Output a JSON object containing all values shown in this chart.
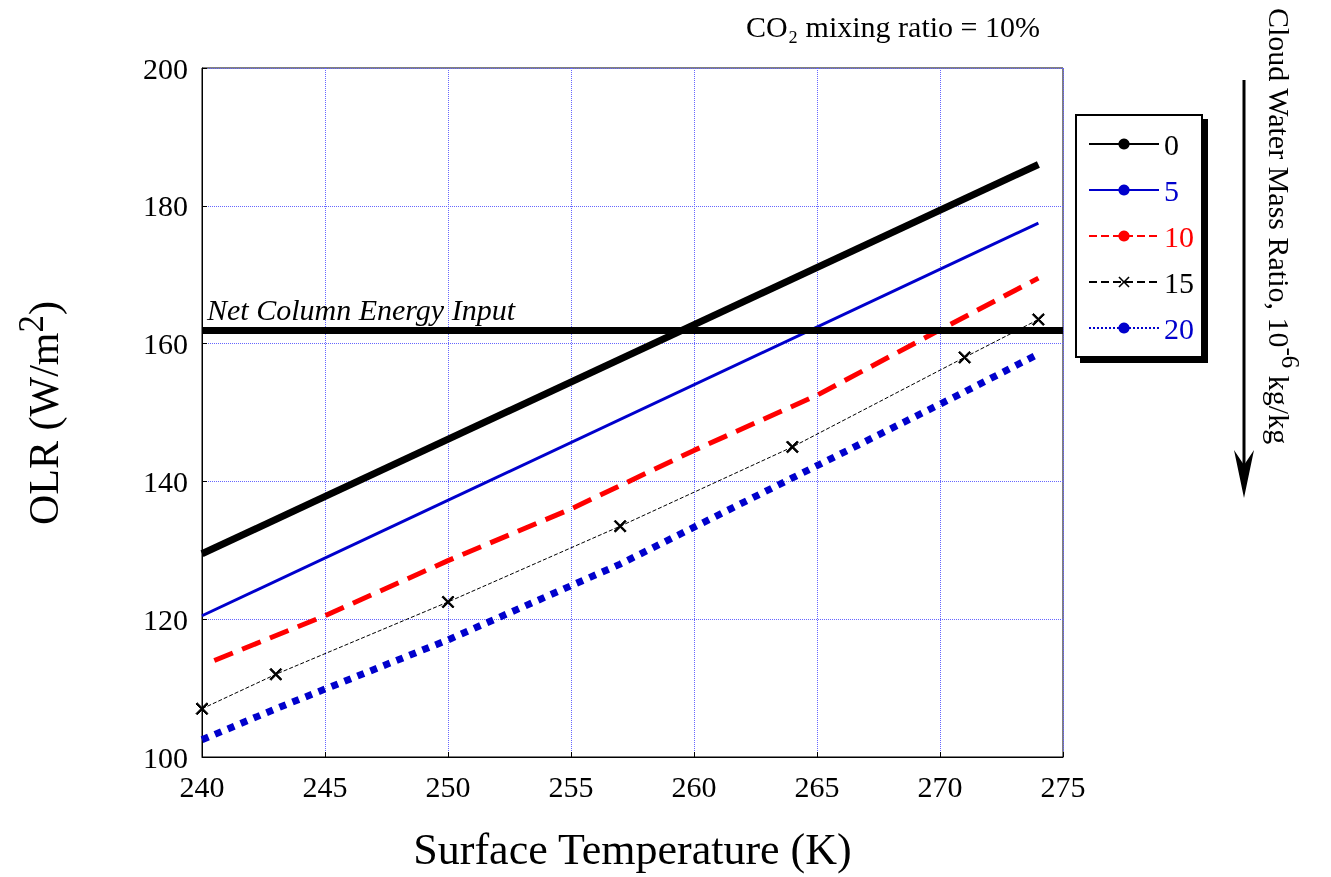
{
  "chart_data": {
    "type": "line",
    "title": "CO₂ mixing ratio = 10%",
    "xlabel": "Surface Temperature (K)",
    "ylabel": "OLR (W/m$^{2}$)",
    "legend_title": "Cloud Water Mass Ratio, 10$^{-6}$ kg/kg",
    "xlim": [
      240,
      275
    ],
    "xticks": [
      240,
      245,
      250,
      255,
      260,
      265,
      270,
      275
    ],
    "ylim": [
      100,
      200
    ],
    "yticks": [
      100,
      120,
      140,
      160,
      180,
      200
    ],
    "grid": true,
    "legend": "right",
    "series": [
      {
        "name": "0",
        "color": "#000000",
        "line_style": "solid",
        "marker": "none",
        "x": [
          240,
          274
        ],
        "values": [
          129.5,
          186
        ]
      },
      {
        "name": "5",
        "color": "#0000cc",
        "line_style": "solid",
        "marker": "none",
        "x": [
          240,
          274
        ],
        "values": [
          120.5,
          177.5
        ]
      },
      {
        "name": "10",
        "color": "#ff0000",
        "line_style": "dashed",
        "marker": "none",
        "x": [
          240.5,
          245,
          250,
          255,
          260,
          265,
          270,
          274
        ],
        "values": [
          114,
          120.5,
          128.5,
          136,
          144.5,
          152.5,
          162,
          169.5
        ]
      },
      {
        "name": "15",
        "color": "#000000",
        "line_style": "dashed",
        "marker": "cross",
        "x": [
          240,
          243,
          250,
          257,
          264,
          271,
          274
        ],
        "values": [
          107,
          112,
          122.5,
          133.5,
          145,
          158,
          163.5
        ]
      },
      {
        "name": "20",
        "color": "#0000cc",
        "line_style": "dotted",
        "marker": "none",
        "x": [
          240,
          243,
          250,
          257,
          264,
          271,
          274
        ],
        "values": [
          102.5,
          107,
          117,
          128,
          140.5,
          153,
          158.5
        ]
      }
    ],
    "ref_lines": [
      {
        "axis": "y",
        "value": 162,
        "label": "Net Column Energy Input",
        "color": "#000000"
      }
    ]
  }
}
